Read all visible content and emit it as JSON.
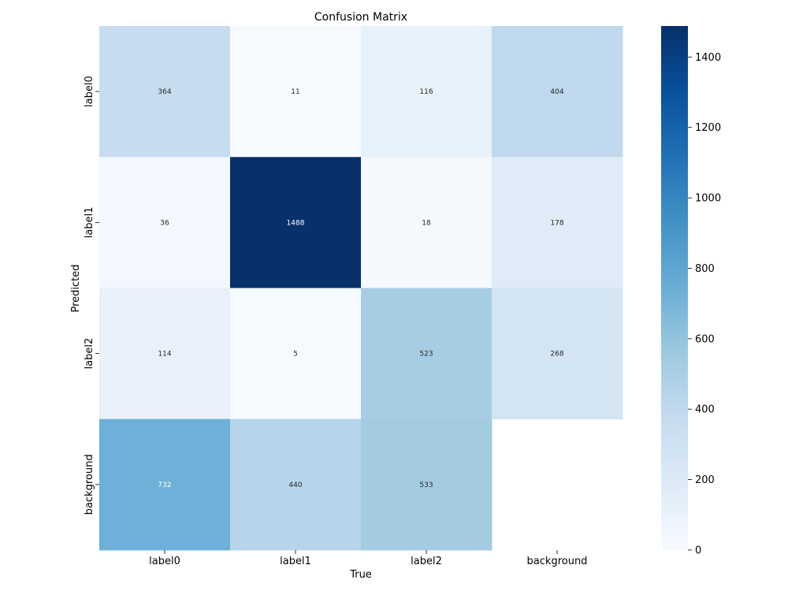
{
  "chart_data": {
    "type": "heatmap",
    "title": "Confusion Matrix",
    "xlabel": "True",
    "ylabel": "Predicted",
    "x_categories": [
      "label0",
      "label1",
      "label2",
      "background"
    ],
    "y_categories": [
      "label0",
      "label1",
      "label2",
      "background"
    ],
    "values": [
      [
        364,
        11,
        116,
        404
      ],
      [
        36,
        1488,
        18,
        178
      ],
      [
        114,
        5,
        523,
        268
      ],
      [
        732,
        440,
        533,
        null
      ]
    ],
    "colormap": "Blues",
    "color_range": [
      0,
      1488
    ],
    "colorbar_ticks": [
      "0",
      "200",
      "400",
      "600",
      "800",
      "1000",
      "1200",
      "1400"
    ],
    "colors": {
      "low": "#f7fbff",
      "high": "#08306b",
      "text_dark": "#262626",
      "text_light": "#ffffff"
    }
  }
}
